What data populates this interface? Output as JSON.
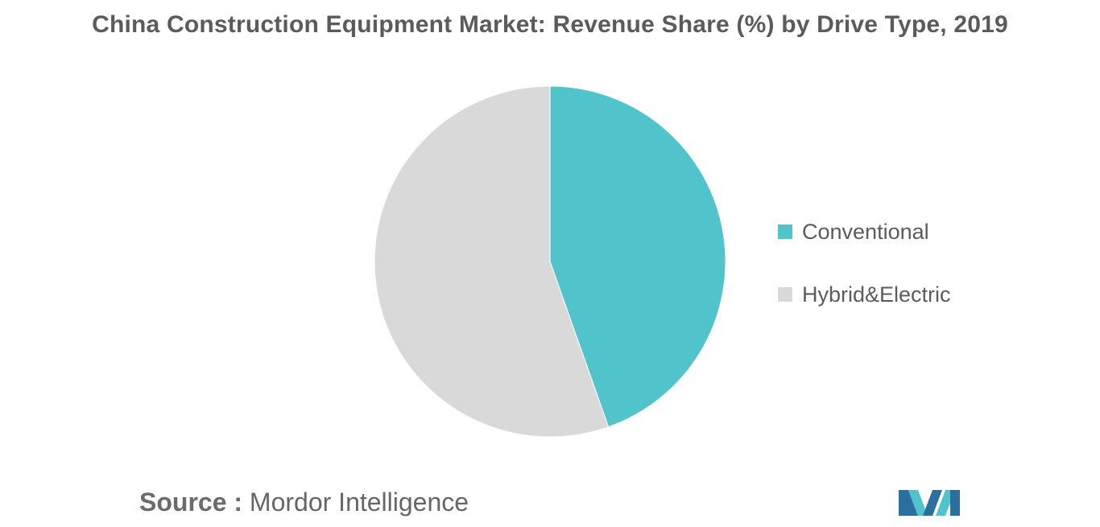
{
  "chart_data": {
    "type": "pie",
    "title": "China Construction Equipment Market: Revenue Share (%) by Drive Type, 2019",
    "slices": [
      {
        "label": "Conventional",
        "value": 44.6,
        "color": "#50c4ca"
      },
      {
        "label": "Hybrid&Electric",
        "value": 55.4,
        "color": "#d9d9d9"
      }
    ],
    "legend_position": "right",
    "data_labels": false
  },
  "source": {
    "label": "Source :",
    "value": "Mordor Intelligence"
  },
  "logo": {
    "icon": "mordor-intelligence-logo-icon",
    "colors": [
      "#2b6f9e",
      "#50c4ca"
    ]
  }
}
